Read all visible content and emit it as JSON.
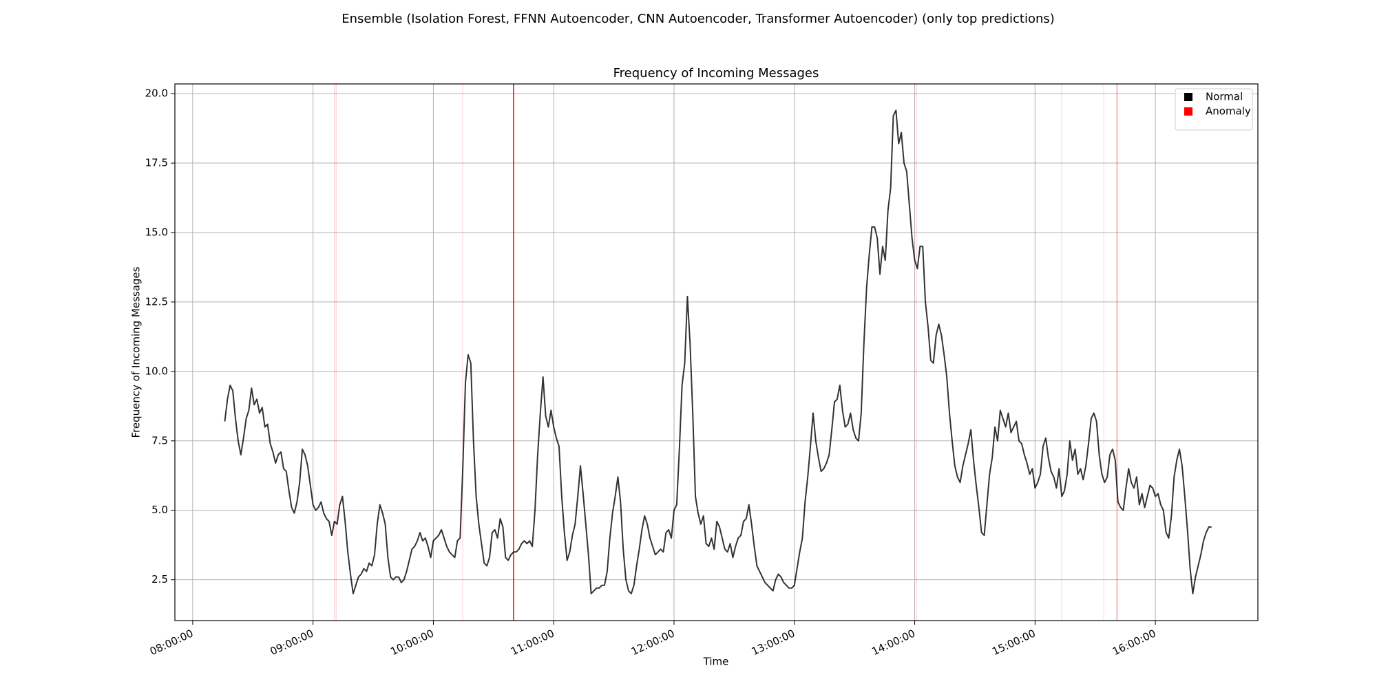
{
  "chart_data": {
    "type": "line",
    "suptitle": "Ensemble (Isolation Forest, FFNN Autoencoder, CNN Autoencoder, Transformer Autoencoder) (only top predictions)",
    "title": "Frequency of Incoming Messages",
    "xlabel": "Time",
    "ylabel": "Frequency of Incoming Messages",
    "grid": true,
    "legend": "upper right",
    "xlim": [
      "07:51:07",
      "16:51:07"
    ],
    "xticks": [
      "08:00:00",
      "09:00:00",
      "10:00:00",
      "11:00:00",
      "12:00:00",
      "13:00:00",
      "14:00:00",
      "15:00:00",
      "16:00:00"
    ],
    "ylim": [
      1.03,
      20.35
    ],
    "yticks": [
      2.5,
      {
        "value": 5,
        "label": "5.0"
      },
      7.5,
      {
        "value": 10,
        "label": "10.0"
      },
      12.5,
      {
        "value": 15,
        "label": "15.0"
      },
      17.5,
      {
        "value": 20,
        "label": "20.0"
      }
    ],
    "x": [
      "08:16:00",
      "08:17:20",
      "08:18:40",
      "08:20:00",
      "08:21:20",
      "08:22:40",
      "08:24:00",
      "08:25:20",
      "08:26:40",
      "08:28:00",
      "08:29:20",
      "08:30:40",
      "08:32:00",
      "08:33:20",
      "08:34:40",
      "08:36:00",
      "08:37:20",
      "08:38:40",
      "08:40:00",
      "08:41:20",
      "08:42:40",
      "08:44:00",
      "08:45:20",
      "08:46:40",
      "08:48:00",
      "08:49:20",
      "08:50:40",
      "08:52:00",
      "08:53:20",
      "08:54:40",
      "08:56:00",
      "08:57:20",
      "08:58:40",
      "09:00:00",
      "09:01:20",
      "09:02:40",
      "09:04:00",
      "09:05:20",
      "09:06:40",
      "09:08:00",
      "09:09:20",
      "09:10:40",
      "09:12:00",
      "09:13:20",
      "09:14:40",
      "09:16:00",
      "09:17:20",
      "09:18:40",
      "09:20:00",
      "09:21:20",
      "09:22:40",
      "09:24:00",
      "09:25:20",
      "09:26:40",
      "09:28:00",
      "09:29:20",
      "09:30:40",
      "09:32:00",
      "09:33:20",
      "09:34:40",
      "09:36:00",
      "09:37:20",
      "09:38:40",
      "09:40:00",
      "09:41:20",
      "09:42:40",
      "09:44:00",
      "09:45:20",
      "09:46:40",
      "09:48:00",
      "09:49:20",
      "09:50:40",
      "09:52:00",
      "09:53:20",
      "09:54:40",
      "09:56:00",
      "09:57:20",
      "09:58:40",
      "10:00:00",
      "10:01:20",
      "10:02:40",
      "10:04:00",
      "10:05:20",
      "10:06:40",
      "10:08:00",
      "10:09:20",
      "10:10:40",
      "10:12:00",
      "10:13:20",
      "10:14:40",
      "10:16:00",
      "10:17:20",
      "10:18:40",
      "10:20:00",
      "10:21:20",
      "10:22:40",
      "10:24:00",
      "10:25:20",
      "10:26:40",
      "10:28:00",
      "10:29:20",
      "10:30:40",
      "10:32:00",
      "10:33:20",
      "10:34:40",
      "10:36:00",
      "10:37:20",
      "10:38:40",
      "10:40:00",
      "10:41:20",
      "10:42:40",
      "10:44:00",
      "10:45:20",
      "10:46:40",
      "10:48:00",
      "10:49:20",
      "10:50:40",
      "10:52:00",
      "10:53:20",
      "10:54:40",
      "10:56:00",
      "10:57:20",
      "10:58:40",
      "11:00:00",
      "11:01:20",
      "11:02:40",
      "11:04:00",
      "11:05:20",
      "11:06:40",
      "11:08:00",
      "11:09:20",
      "11:10:40",
      "11:12:00",
      "11:13:20",
      "11:14:40",
      "11:16:00",
      "11:17:20",
      "11:18:40",
      "11:20:00",
      "11:21:20",
      "11:22:40",
      "11:24:00",
      "11:25:20",
      "11:26:40",
      "11:28:00",
      "11:29:20",
      "11:30:40",
      "11:32:00",
      "11:33:20",
      "11:34:40",
      "11:36:00",
      "11:37:20",
      "11:38:40",
      "11:40:00",
      "11:41:20",
      "11:42:40",
      "11:44:00",
      "11:45:20",
      "11:46:40",
      "11:48:00",
      "11:49:20",
      "11:50:40",
      "11:52:00",
      "11:53:20",
      "11:54:40",
      "11:56:00",
      "11:57:20",
      "11:58:40",
      "12:00:00",
      "12:01:20",
      "12:02:40",
      "12:04:00",
      "12:05:20",
      "12:06:40",
      "12:08:00",
      "12:09:20",
      "12:10:40",
      "12:12:00",
      "12:13:20",
      "12:14:40",
      "12:16:00",
      "12:17:20",
      "12:18:40",
      "12:20:00",
      "12:21:20",
      "12:22:40",
      "12:24:00",
      "12:25:20",
      "12:26:40",
      "12:28:00",
      "12:29:20",
      "12:30:40",
      "12:32:00",
      "12:33:20",
      "12:34:40",
      "12:36:00",
      "12:37:20",
      "12:38:40",
      "12:40:00",
      "12:41:20",
      "12:42:40",
      "12:44:00",
      "12:45:20",
      "12:46:40",
      "12:48:00",
      "12:49:20",
      "12:50:40",
      "12:52:00",
      "12:53:20",
      "12:54:40",
      "12:56:00",
      "12:57:20",
      "12:58:40",
      "13:00:00",
      "13:01:20",
      "13:02:40",
      "13:04:00",
      "13:05:20",
      "13:06:40",
      "13:08:00",
      "13:09:20",
      "13:10:40",
      "13:12:00",
      "13:13:20",
      "13:14:40",
      "13:16:00",
      "13:17:20",
      "13:18:40",
      "13:20:00",
      "13:21:20",
      "13:22:40",
      "13:24:00",
      "13:25:20",
      "13:26:40",
      "13:28:00",
      "13:29:20",
      "13:30:40",
      "13:32:00",
      "13:33:20",
      "13:34:40",
      "13:36:00",
      "13:37:20",
      "13:38:40",
      "13:40:00",
      "13:41:20",
      "13:42:40",
      "13:44:00",
      "13:45:20",
      "13:46:40",
      "13:48:00",
      "13:49:20",
      "13:50:40",
      "13:52:00",
      "13:53:20",
      "13:54:40",
      "13:56:00",
      "13:57:20",
      "13:58:40",
      "14:00:00",
      "14:01:20",
      "14:02:40",
      "14:04:00",
      "14:05:20",
      "14:06:40",
      "14:08:00",
      "14:09:20",
      "14:10:40",
      "14:12:00",
      "14:13:20",
      "14:14:40",
      "14:16:00",
      "14:17:20",
      "14:18:40",
      "14:20:00",
      "14:21:20",
      "14:22:40",
      "14:24:00",
      "14:25:20",
      "14:26:40",
      "14:28:00",
      "14:29:20",
      "14:30:40",
      "14:32:00",
      "14:33:20",
      "14:34:40",
      "14:36:00",
      "14:37:20",
      "14:38:40",
      "14:40:00",
      "14:41:20",
      "14:42:40",
      "14:44:00",
      "14:45:20",
      "14:46:40",
      "14:48:00",
      "14:49:20",
      "14:50:40",
      "14:52:00",
      "14:53:20",
      "14:54:40",
      "14:56:00",
      "14:57:20",
      "14:58:40",
      "15:00:00",
      "15:01:20",
      "15:02:40",
      "15:04:00",
      "15:05:20",
      "15:06:40",
      "15:08:00",
      "15:09:20",
      "15:10:40",
      "15:12:00",
      "15:13:20",
      "15:14:40",
      "15:16:00",
      "15:17:20",
      "15:18:40",
      "15:20:00",
      "15:21:20",
      "15:22:40",
      "15:24:00",
      "15:25:20",
      "15:26:40",
      "15:28:00",
      "15:29:20",
      "15:30:40",
      "15:32:00",
      "15:33:20",
      "15:34:40",
      "15:36:00",
      "15:37:20",
      "15:38:40",
      "15:40:00",
      "15:41:20",
      "15:42:40",
      "15:44:00",
      "15:45:20",
      "15:46:40",
      "15:48:00",
      "15:49:20",
      "15:50:40",
      "15:52:00",
      "15:53:20",
      "15:54:40",
      "15:56:00",
      "15:57:20",
      "15:58:40",
      "16:00:00",
      "16:01:20",
      "16:02:40",
      "16:04:00",
      "16:05:20",
      "16:06:40",
      "16:08:00",
      "16:09:20",
      "16:10:40",
      "16:12:00",
      "16:13:20",
      "16:14:40",
      "16:16:00",
      "16:17:20",
      "16:18:40",
      "16:20:00",
      "16:21:20",
      "16:22:40",
      "16:24:00",
      "16:25:20",
      "16:26:40",
      "16:28:00"
    ],
    "series": [
      {
        "name": "Normal",
        "color": "#000000",
        "values": [
          8.2,
          9.0,
          9.5,
          9.3,
          8.3,
          7.5,
          7.0,
          7.6,
          8.3,
          8.6,
          9.4,
          8.8,
          9.0,
          8.5,
          8.7,
          8.0,
          8.1,
          7.4,
          7.1,
          6.7,
          7.0,
          7.1,
          6.5,
          6.4,
          5.7,
          5.1,
          4.9,
          5.3,
          6.0,
          7.2,
          7.0,
          6.6,
          5.9,
          5.2,
          5.0,
          5.1,
          5.3,
          4.9,
          4.7,
          4.6,
          4.1,
          4.6,
          4.5,
          5.2,
          5.5,
          4.6,
          3.5,
          2.7,
          2.0,
          2.3,
          2.6,
          2.7,
          2.9,
          2.8,
          3.1,
          3.0,
          3.4,
          4.5,
          5.2,
          4.9,
          4.5,
          3.3,
          2.6,
          2.5,
          2.6,
          2.6,
          2.4,
          2.5,
          2.8,
          3.2,
          3.6,
          3.7,
          3.9,
          4.2,
          3.9,
          4.0,
          3.7,
          3.3,
          3.9,
          4.0,
          4.1,
          4.3,
          4.0,
          3.7,
          3.5,
          3.4,
          3.3,
          3.9,
          4.0,
          6.5,
          9.6,
          10.6,
          10.3,
          7.5,
          5.5,
          4.5,
          3.8,
          3.1,
          3.0,
          3.3,
          4.2,
          4.3,
          4.0,
          4.7,
          4.4,
          3.3,
          3.2,
          3.4,
          3.5,
          3.5,
          3.6,
          3.8,
          3.9,
          3.8,
          3.9,
          3.7,
          5.0,
          7.0,
          8.5,
          9.8,
          8.4,
          8.0,
          8.6,
          8.0,
          7.6,
          7.3,
          5.5,
          4.2,
          3.2,
          3.5,
          4.1,
          4.5,
          5.5,
          6.6,
          5.6,
          4.5,
          3.4,
          2.0,
          2.1,
          2.2,
          2.2,
          2.3,
          2.3,
          2.8,
          4.0,
          4.9,
          5.5,
          6.2,
          5.3,
          3.6,
          2.5,
          2.1,
          2.0,
          2.3,
          3.0,
          3.6,
          4.3,
          4.8,
          4.5,
          4.0,
          3.7,
          3.4,
          3.5,
          3.6,
          3.5,
          4.2,
          4.3,
          4.0,
          5.0,
          5.2,
          7.2,
          9.5,
          10.3,
          12.7,
          11.0,
          8.5,
          5.5,
          4.9,
          4.5,
          4.8,
          3.8,
          3.7,
          4.0,
          3.6,
          4.6,
          4.4,
          4.0,
          3.6,
          3.5,
          3.8,
          3.3,
          3.7,
          4.0,
          4.1,
          4.6,
          4.7,
          5.2,
          4.5,
          3.7,
          3.0,
          2.8,
          2.6,
          2.4,
          2.3,
          2.2,
          2.1,
          2.5,
          2.7,
          2.6,
          2.4,
          2.3,
          2.2,
          2.2,
          2.3,
          2.9,
          3.5,
          4.0,
          5.3,
          6.2,
          7.3,
          8.5,
          7.5,
          6.9,
          6.4,
          6.5,
          6.7,
          7.0,
          7.9,
          8.9,
          9.0,
          9.5,
          8.6,
          8.0,
          8.1,
          8.5,
          7.9,
          7.6,
          7.5,
          8.5,
          11.0,
          13.0,
          14.2,
          15.2,
          15.2,
          14.8,
          13.5,
          14.5,
          14.0,
          15.8,
          16.6,
          19.2,
          19.4,
          18.2,
          18.6,
          17.5,
          17.2,
          16.0,
          14.8,
          14.0,
          13.7,
          14.5,
          14.5,
          12.5,
          11.6,
          10.4,
          10.3,
          11.3,
          11.7,
          11.3,
          10.6,
          9.8,
          8.5,
          7.5,
          6.6,
          6.2,
          6.0,
          6.6,
          7.0,
          7.4,
          7.9,
          6.8,
          5.9,
          5.1,
          4.2,
          4.1,
          5.2,
          6.3,
          6.9,
          8.0,
          7.5,
          8.6,
          8.3,
          8.0,
          8.5,
          7.8,
          8.0,
          8.2,
          7.5,
          7.4,
          7.0,
          6.7,
          6.3,
          6.5,
          5.8,
          6.0,
          6.3,
          7.3,
          7.6,
          6.9,
          6.4,
          6.2,
          5.8,
          6.5,
          5.5,
          5.7,
          6.3,
          7.5,
          6.8,
          7.2,
          6.3,
          6.5,
          6.1,
          6.6,
          7.4,
          8.3,
          8.5,
          8.2,
          7.0,
          6.3,
          6.0,
          6.2,
          7.0,
          7.2,
          6.8,
          5.3,
          5.1,
          5.0,
          5.8,
          6.5,
          6.0,
          5.8,
          6.2,
          5.2,
          5.6,
          5.1,
          5.5,
          5.9,
          5.8,
          5.5,
          5.6,
          5.2,
          5.0,
          4.2,
          4.0,
          4.8,
          6.2,
          6.8,
          7.2,
          6.6,
          5.5,
          4.3,
          2.9,
          2.0,
          2.6,
          3.0,
          3.4,
          3.9,
          4.2,
          4.4,
          4.4
        ]
      }
    ],
    "anomalies": {
      "name": "Anomaly",
      "color": "#ff0000",
      "x": [
        "09:10:40",
        "09:11:33",
        "10:14:40",
        "10:40:00",
        "14:00:53",
        "15:13:20",
        "15:34:13",
        "15:40:53"
      ],
      "alpha": [
        0.15,
        0.15,
        0.12,
        1.0,
        0.15,
        0.12,
        0.08,
        0.4
      ]
    }
  }
}
